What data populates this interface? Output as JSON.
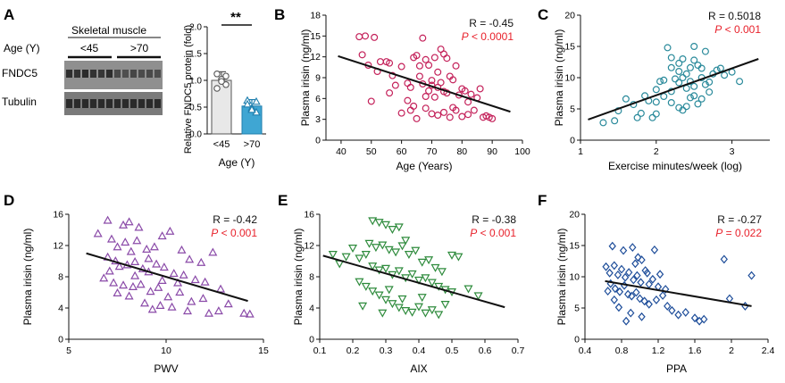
{
  "panel_a": {
    "letter": "A",
    "blot": {
      "header": "Skeletal muscle",
      "group_label": "Age (Y)",
      "groups": [
        "<45",
        ">70"
      ],
      "rows": [
        "FNDC5",
        "Tubulin"
      ]
    },
    "bar": {
      "ylabel": "Relative FNDC5 protein (fold)",
      "xlabel": "Age (Y)",
      "significance": "**",
      "yticks": [
        "0.0",
        "0.5",
        "1.0",
        "1.5",
        "2.0"
      ]
    }
  },
  "styles": {
    "bar_colors": [
      "#e8e8e8",
      "#3fa6d3"
    ],
    "bar_edge_colors": [
      "#555555",
      "#1f7fae"
    ],
    "r_color": "#111111",
    "p_color": "#e8212b"
  },
  "chart_data": [
    {
      "type": "bar",
      "panel": "A",
      "categories": [
        "<45",
        ">70"
      ],
      "values": [
        1.0,
        0.52
      ],
      "errors": [
        0.16,
        0.12
      ],
      "points": [
        [
          1.12,
          1.02,
          0.92,
          0.85,
          0.98,
          1.08
        ],
        [
          0.62,
          0.48,
          0.4,
          0.55,
          0.45,
          0.6
        ]
      ],
      "ylim": [
        0,
        2.0
      ],
      "ylabel": "Relative FNDC5 protein (fold)",
      "xlabel": "Age (Y)"
    },
    {
      "type": "scatter",
      "panel": "B",
      "xlabel": "Age (Years)",
      "ylabel": "Plasma irisin (ng/ml)",
      "xlim": [
        35,
        100
      ],
      "ylim": [
        0,
        18
      ],
      "xticks": [
        40,
        50,
        60,
        70,
        80,
        90,
        100
      ],
      "yticks": [
        0,
        3,
        6,
        9,
        12,
        15,
        18
      ],
      "r_text": "R = -0.45",
      "p_text": "P < 0.0001",
      "marker": "circle",
      "color": "#c4215a",
      "fit": [
        [
          39,
          12.1
        ],
        [
          96,
          4.1
        ]
      ],
      "points": [
        [
          46,
          14.9
        ],
        [
          48,
          15.0
        ],
        [
          51,
          14.8
        ],
        [
          47,
          12.3
        ],
        [
          49,
          10.8
        ],
        [
          53,
          11.3
        ],
        [
          55,
          11.3
        ],
        [
          56,
          11.1
        ],
        [
          52,
          9.9
        ],
        [
          57,
          9.3
        ],
        [
          58,
          7.9
        ],
        [
          56,
          6.8
        ],
        [
          50,
          5.6
        ],
        [
          60,
          10.6
        ],
        [
          62,
          8.2
        ],
        [
          63,
          7.6
        ],
        [
          64,
          11.9
        ],
        [
          65,
          12.2
        ],
        [
          66,
          10.7
        ],
        [
          67,
          14.7
        ],
        [
          68,
          11.6
        ],
        [
          69,
          10.8
        ],
        [
          70,
          8.6
        ],
        [
          71,
          11.9
        ],
        [
          72,
          9.8
        ],
        [
          73,
          13.1
        ],
        [
          74,
          12.4
        ],
        [
          75,
          11.8
        ],
        [
          66,
          9.2
        ],
        [
          67,
          8.1
        ],
        [
          68,
          6.3
        ],
        [
          69,
          7.1
        ],
        [
          70,
          7.9
        ],
        [
          71,
          6.2
        ],
        [
          72,
          7.6
        ],
        [
          73,
          8.3
        ],
        [
          74,
          7.0
        ],
        [
          75,
          6.8
        ],
        [
          76,
          9.2
        ],
        [
          77,
          8.7
        ],
        [
          78,
          10.7
        ],
        [
          79,
          6.5
        ],
        [
          80,
          7.4
        ],
        [
          81,
          7.1
        ],
        [
          82,
          5.5
        ],
        [
          83,
          6.6
        ],
        [
          84,
          4.3
        ],
        [
          85,
          6.1
        ],
        [
          86,
          7.4
        ],
        [
          87,
          3.3
        ],
        [
          88,
          3.5
        ],
        [
          89,
          3.3
        ],
        [
          90,
          3.1
        ],
        [
          62,
          5.7
        ],
        [
          63,
          4.3
        ],
        [
          65,
          3.1
        ],
        [
          70,
          3.8
        ],
        [
          72,
          3.6
        ],
        [
          74,
          4.0
        ],
        [
          76,
          3.3
        ],
        [
          78,
          4.3
        ],
        [
          80,
          3.4
        ],
        [
          82,
          3.7
        ],
        [
          60,
          3.9
        ],
        [
          68,
          4.6
        ],
        [
          64,
          4.9
        ],
        [
          77,
          4.7
        ]
      ]
    },
    {
      "type": "scatter",
      "panel": "C",
      "xlabel": "Exercise minutes/week (log)",
      "ylabel": "Plasma irisin (ng/ml)",
      "xlim": [
        1,
        3.5
      ],
      "ylim": [
        0,
        20
      ],
      "xticks": [
        1,
        2,
        3
      ],
      "yticks": [
        0,
        5,
        10,
        15,
        20
      ],
      "r_text": "R = 0.5018",
      "p_text": "P < 0.001",
      "marker": "circle",
      "color": "#2a8a9b",
      "fit": [
        [
          1.1,
          3.3
        ],
        [
          3.35,
          13.0
        ]
      ],
      "points": [
        [
          1.3,
          2.8
        ],
        [
          1.45,
          3.1
        ],
        [
          1.5,
          4.7
        ],
        [
          1.6,
          6.6
        ],
        [
          1.7,
          5.7
        ],
        [
          1.75,
          3.6
        ],
        [
          1.8,
          4.3
        ],
        [
          1.85,
          7.1
        ],
        [
          1.9,
          6.3
        ],
        [
          1.95,
          3.6
        ],
        [
          2.0,
          6.1
        ],
        [
          2.0,
          8.1
        ],
        [
          2.05,
          9.4
        ],
        [
          2.1,
          9.6
        ],
        [
          2.15,
          14.8
        ],
        [
          2.2,
          13.2
        ],
        [
          2.2,
          11.6
        ],
        [
          2.25,
          9.8
        ],
        [
          2.3,
          12.3
        ],
        [
          2.3,
          11.0
        ],
        [
          2.35,
          13.0
        ],
        [
          2.35,
          10.0
        ],
        [
          2.4,
          10.6
        ],
        [
          2.4,
          8.3
        ],
        [
          2.45,
          11.6
        ],
        [
          2.45,
          9.4
        ],
        [
          2.5,
          12.8
        ],
        [
          2.5,
          8.6
        ],
        [
          2.5,
          15.0
        ],
        [
          2.55,
          12.0
        ],
        [
          2.6,
          11.5
        ],
        [
          2.6,
          10.0
        ],
        [
          2.65,
          14.2
        ],
        [
          2.65,
          8.9
        ],
        [
          2.7,
          9.3
        ],
        [
          2.7,
          7.7
        ],
        [
          2.75,
          10.6
        ],
        [
          2.8,
          11.2
        ],
        [
          2.85,
          11.5
        ],
        [
          2.9,
          10.4
        ],
        [
          3.0,
          10.9
        ],
        [
          3.1,
          9.4
        ],
        [
          2.1,
          7.0
        ],
        [
          2.2,
          6.0
        ],
        [
          2.3,
          5.2
        ],
        [
          2.35,
          4.8
        ],
        [
          2.4,
          5.4
        ],
        [
          2.2,
          7.8
        ],
        [
          2.5,
          7.1
        ],
        [
          2.0,
          4.2
        ],
        [
          2.6,
          6.6
        ],
        [
          2.3,
          9.2
        ],
        [
          2.45,
          6.8
        ],
        [
          2.55,
          5.8
        ]
      ]
    },
    {
      "type": "scatter",
      "panel": "D",
      "xlabel": "PWV",
      "ylabel": "Plasma irisin (ng/ml)",
      "xlim": [
        5,
        15
      ],
      "ylim": [
        0,
        16
      ],
      "xticks": [
        5,
        10,
        15
      ],
      "yticks": [
        0,
        4,
        8,
        12,
        16
      ],
      "r_text": "R = -0.42",
      "p_text": "P < 0.001",
      "marker": "triangle-up",
      "color": "#8a4aa8",
      "fit": [
        [
          5.9,
          11.0
        ],
        [
          14.2,
          4.9
        ]
      ],
      "points": [
        [
          7.0,
          15.2
        ],
        [
          7.8,
          14.6
        ],
        [
          8.1,
          15.0
        ],
        [
          8.6,
          14.3
        ],
        [
          6.5,
          13.5
        ],
        [
          7.2,
          12.8
        ],
        [
          7.5,
          11.8
        ],
        [
          7.9,
          12.4
        ],
        [
          8.2,
          11.2
        ],
        [
          8.5,
          12.6
        ],
        [
          9.0,
          11.5
        ],
        [
          9.4,
          11.8
        ],
        [
          9.8,
          13.2
        ],
        [
          10.2,
          13.8
        ],
        [
          10.8,
          11.4
        ],
        [
          11.2,
          10.2
        ],
        [
          11.8,
          9.8
        ],
        [
          12.4,
          11.1
        ],
        [
          7.0,
          10.5
        ],
        [
          7.4,
          10.0
        ],
        [
          7.6,
          9.3
        ],
        [
          8.0,
          9.5
        ],
        [
          8.4,
          9.9
        ],
        [
          8.8,
          9.0
        ],
        [
          9.1,
          8.6
        ],
        [
          9.5,
          9.6
        ],
        [
          9.9,
          9.2
        ],
        [
          10.4,
          8.4
        ],
        [
          10.9,
          8.2
        ],
        [
          11.5,
          7.6
        ],
        [
          12.0,
          7.3
        ],
        [
          12.8,
          6.4
        ],
        [
          6.8,
          7.8
        ],
        [
          7.3,
          7.2
        ],
        [
          7.8,
          6.9
        ],
        [
          8.3,
          6.7
        ],
        [
          8.7,
          7.0
        ],
        [
          9.2,
          6.1
        ],
        [
          9.6,
          6.6
        ],
        [
          10.1,
          5.4
        ],
        [
          10.7,
          6.0
        ],
        [
          11.3,
          4.8
        ],
        [
          7.5,
          5.9
        ],
        [
          8.1,
          5.5
        ],
        [
          8.9,
          4.6
        ],
        [
          9.7,
          4.3
        ],
        [
          10.3,
          4.1
        ],
        [
          11.1,
          3.6
        ],
        [
          12.2,
          3.3
        ],
        [
          12.7,
          3.6
        ],
        [
          14.0,
          3.3
        ],
        [
          14.3,
          3.2
        ],
        [
          9.3,
          3.8
        ],
        [
          13.2,
          4.5
        ],
        [
          8.4,
          8.1
        ],
        [
          9.1,
          10.3
        ],
        [
          10.6,
          7.2
        ],
        [
          7.1,
          8.7
        ],
        [
          9.8,
          7.5
        ],
        [
          11.9,
          5.2
        ]
      ]
    },
    {
      "type": "scatter",
      "panel": "E",
      "xlabel": "AIX",
      "ylabel": "Plasma irisin (ng/ml)",
      "xlim": [
        0.1,
        0.7
      ],
      "ylim": [
        0,
        16
      ],
      "xticks": [
        0.1,
        0.2,
        0.3,
        0.4,
        0.5,
        0.6,
        0.7
      ],
      "yticks": [
        0,
        4,
        8,
        12,
        16
      ],
      "r_text": "R = -0.38",
      "p_text": "P < 0.001",
      "marker": "triangle-down",
      "color": "#2e8b3c",
      "fit": [
        [
          0.11,
          10.7
        ],
        [
          0.66,
          4.1
        ]
      ],
      "points": [
        [
          0.14,
          10.9
        ],
        [
          0.16,
          9.7
        ],
        [
          0.18,
          10.6
        ],
        [
          0.2,
          11.7
        ],
        [
          0.22,
          10.4
        ],
        [
          0.24,
          10.9
        ],
        [
          0.26,
          15.2
        ],
        [
          0.28,
          15.0
        ],
        [
          0.3,
          14.7
        ],
        [
          0.32,
          14.1
        ],
        [
          0.34,
          14.4
        ],
        [
          0.36,
          12.7
        ],
        [
          0.25,
          12.3
        ],
        [
          0.27,
          11.8
        ],
        [
          0.29,
          12.1
        ],
        [
          0.31,
          11.5
        ],
        [
          0.33,
          11.2
        ],
        [
          0.35,
          12.0
        ],
        [
          0.37,
          10.9
        ],
        [
          0.39,
          11.4
        ],
        [
          0.41,
          9.9
        ],
        [
          0.43,
          10.2
        ],
        [
          0.45,
          9.2
        ],
        [
          0.47,
          8.7
        ],
        [
          0.5,
          10.8
        ],
        [
          0.52,
          10.6
        ],
        [
          0.26,
          9.4
        ],
        [
          0.28,
          8.9
        ],
        [
          0.3,
          9.1
        ],
        [
          0.32,
          8.3
        ],
        [
          0.34,
          8.8
        ],
        [
          0.36,
          7.9
        ],
        [
          0.38,
          8.4
        ],
        [
          0.4,
          7.6
        ],
        [
          0.42,
          7.9
        ],
        [
          0.44,
          7.3
        ],
        [
          0.46,
          6.8
        ],
        [
          0.48,
          6.4
        ],
        [
          0.5,
          6.1
        ],
        [
          0.55,
          6.5
        ],
        [
          0.58,
          5.6
        ],
        [
          0.22,
          7.4
        ],
        [
          0.24,
          6.8
        ],
        [
          0.26,
          6.2
        ],
        [
          0.28,
          5.7
        ],
        [
          0.3,
          5.1
        ],
        [
          0.32,
          4.6
        ],
        [
          0.34,
          4.1
        ],
        [
          0.36,
          3.7
        ],
        [
          0.38,
          3.5
        ],
        [
          0.4,
          4.2
        ],
        [
          0.42,
          3.4
        ],
        [
          0.44,
          3.8
        ],
        [
          0.46,
          3.2
        ],
        [
          0.48,
          4.5
        ],
        [
          0.31,
          6.4
        ],
        [
          0.29,
          3.4
        ],
        [
          0.35,
          5.2
        ],
        [
          0.41,
          5.4
        ],
        [
          0.23,
          4.3
        ]
      ]
    },
    {
      "type": "scatter",
      "panel": "F",
      "xlabel": "PPA",
      "ylabel": "Plasma irisin (ng/ml)",
      "xlim": [
        0.4,
        2.4
      ],
      "ylim": [
        0,
        20
      ],
      "xticks": [
        0.4,
        0.8,
        1.2,
        1.6,
        2.0,
        2.4
      ],
      "yticks": [
        0,
        5,
        10,
        15,
        20
      ],
      "r_text": "R = -0.27",
      "p_text": "P = 0.022",
      "marker": "diamond",
      "color": "#1f4e9a",
      "fit": [
        [
          0.62,
          9.3
        ],
        [
          2.22,
          5.3
        ]
      ],
      "points": [
        [
          0.7,
          14.9
        ],
        [
          0.82,
          14.2
        ],
        [
          0.92,
          14.7
        ],
        [
          0.98,
          13.1
        ],
        [
          1.02,
          12.7
        ],
        [
          1.16,
          14.3
        ],
        [
          0.63,
          11.6
        ],
        [
          0.67,
          10.6
        ],
        [
          0.72,
          11.8
        ],
        [
          0.76,
          10.3
        ],
        [
          0.8,
          11.2
        ],
        [
          0.84,
          9.9
        ],
        [
          0.88,
          10.7
        ],
        [
          0.93,
          9.5
        ],
        [
          0.97,
          10.2
        ],
        [
          1.01,
          9.1
        ],
        [
          1.06,
          11.0
        ],
        [
          1.1,
          8.8
        ],
        [
          1.14,
          9.6
        ],
        [
          1.2,
          8.4
        ],
        [
          0.68,
          8.9
        ],
        [
          0.73,
          8.1
        ],
        [
          0.78,
          7.6
        ],
        [
          0.83,
          8.6
        ],
        [
          0.87,
          7.2
        ],
        [
          0.91,
          6.9
        ],
        [
          0.96,
          7.5
        ],
        [
          1.0,
          6.5
        ],
        [
          1.05,
          6.1
        ],
        [
          1.1,
          5.6
        ],
        [
          1.18,
          6.3
        ],
        [
          1.25,
          7.0
        ],
        [
          1.3,
          5.3
        ],
        [
          1.35,
          4.6
        ],
        [
          1.42,
          3.9
        ],
        [
          1.5,
          4.3
        ],
        [
          1.6,
          3.4
        ],
        [
          1.65,
          2.9
        ],
        [
          1.7,
          3.2
        ],
        [
          1.02,
          3.6
        ],
        [
          0.9,
          4.2
        ],
        [
          0.85,
          2.9
        ],
        [
          0.77,
          5.1
        ],
        [
          0.72,
          6.3
        ],
        [
          0.65,
          7.7
        ],
        [
          1.92,
          12.8
        ],
        [
          2.22,
          10.2
        ],
        [
          1.98,
          6.5
        ],
        [
          2.15,
          5.3
        ],
        [
          1.08,
          10.6
        ],
        [
          0.95,
          12.1
        ],
        [
          1.22,
          10.4
        ],
        [
          1.28,
          8.0
        ]
      ]
    }
  ]
}
